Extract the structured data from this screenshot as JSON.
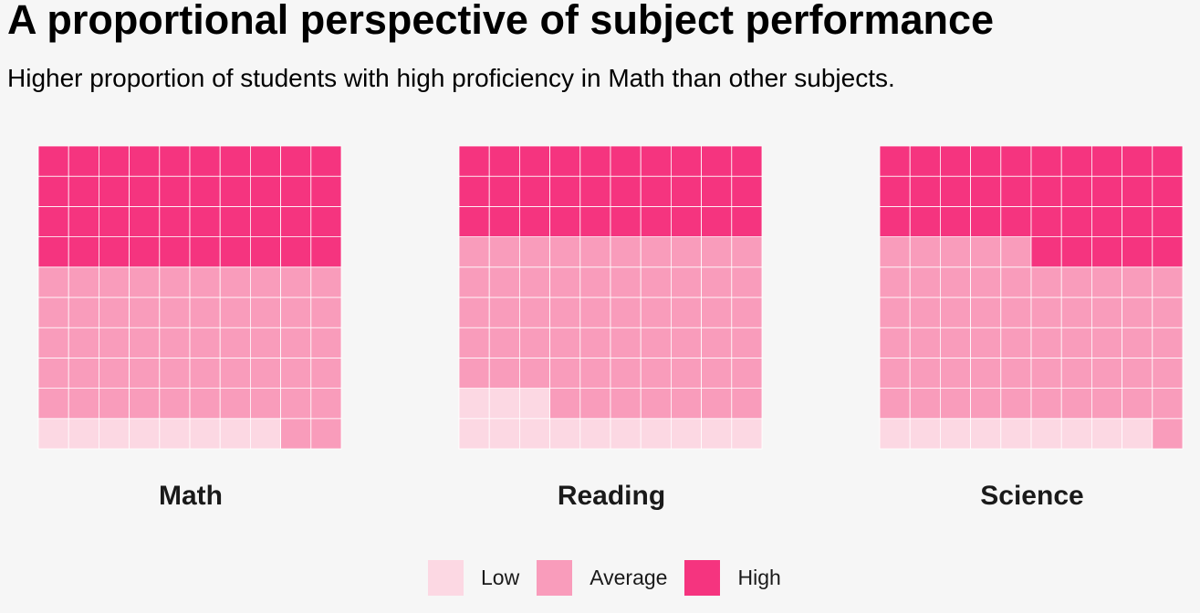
{
  "header": {
    "title": "A proportional perspective of subject performance",
    "subtitle": "Higher proportion of students with high proficiency in Math than other subjects."
  },
  "colors": {
    "Low": "#fcd8e3",
    "Average": "#f99cbb",
    "High": "#f5347f",
    "background": "#f6f6f6"
  },
  "chart_data": {
    "type": "waffle",
    "grid": {
      "rows": 10,
      "cols": 10
    },
    "categories": [
      "Low",
      "Average",
      "High"
    ],
    "panels": [
      {
        "name": "Math",
        "values": {
          "Low": 8,
          "Average": 52,
          "High": 40
        }
      },
      {
        "name": "Reading",
        "values": {
          "Low": 13,
          "Average": 57,
          "High": 30
        }
      },
      {
        "name": "Science",
        "values": {
          "Low": 9,
          "Average": 56,
          "High": 35
        }
      }
    ],
    "legend": {
      "position": "bottom",
      "entries": [
        "Low",
        "Average",
        "High"
      ]
    }
  }
}
